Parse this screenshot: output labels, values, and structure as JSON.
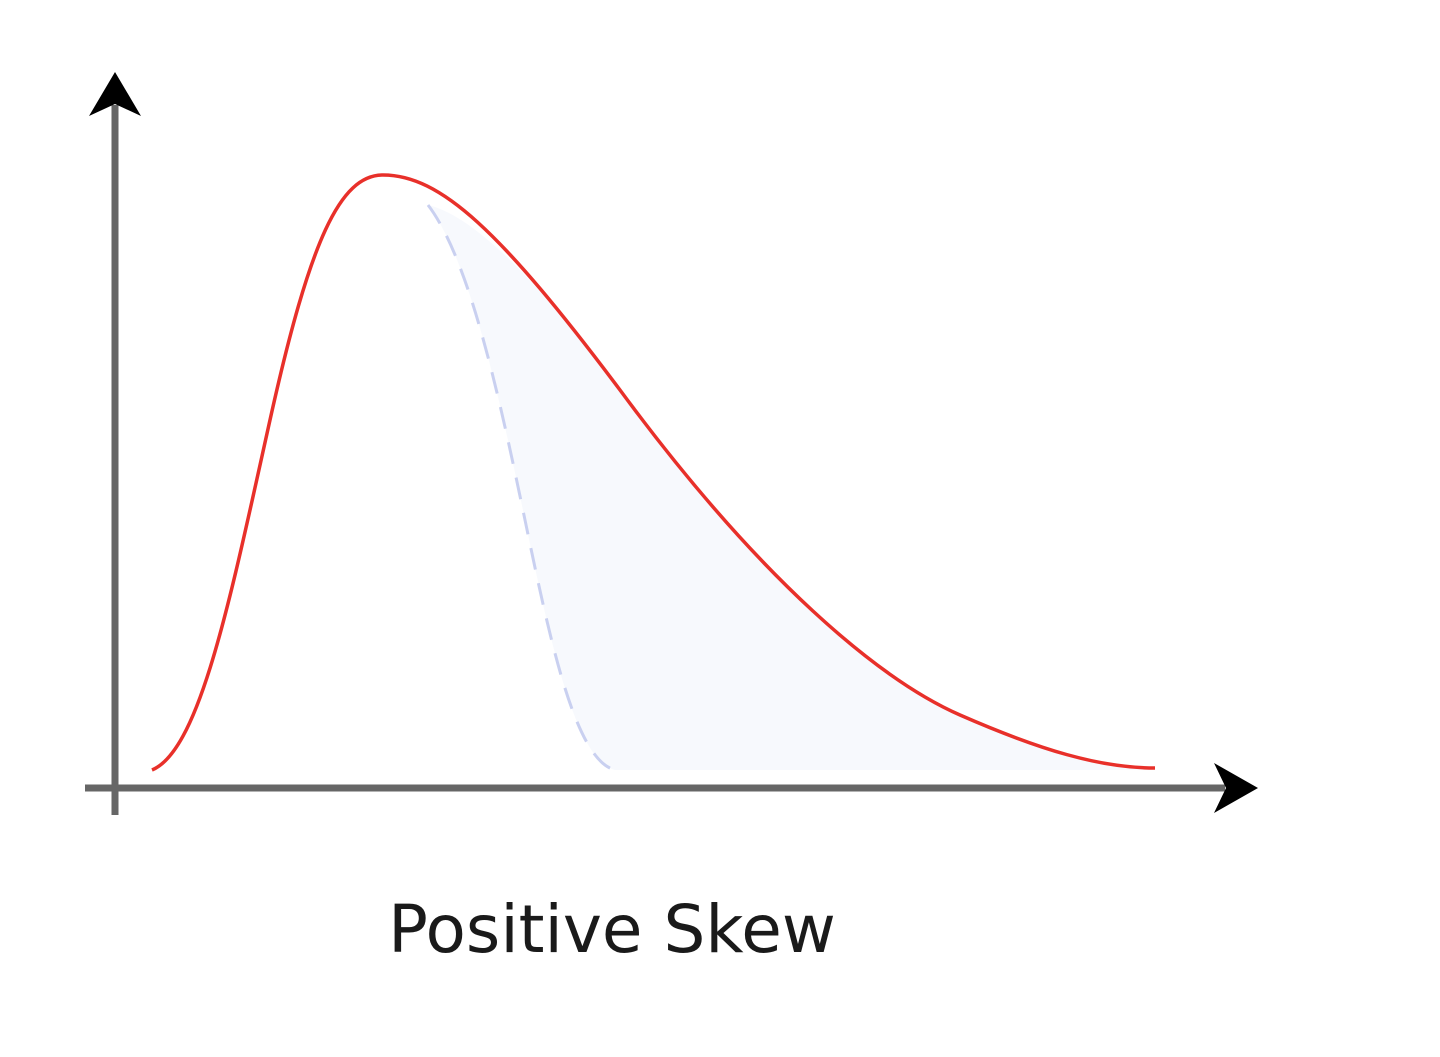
{
  "caption": "Positive Skew"
}
